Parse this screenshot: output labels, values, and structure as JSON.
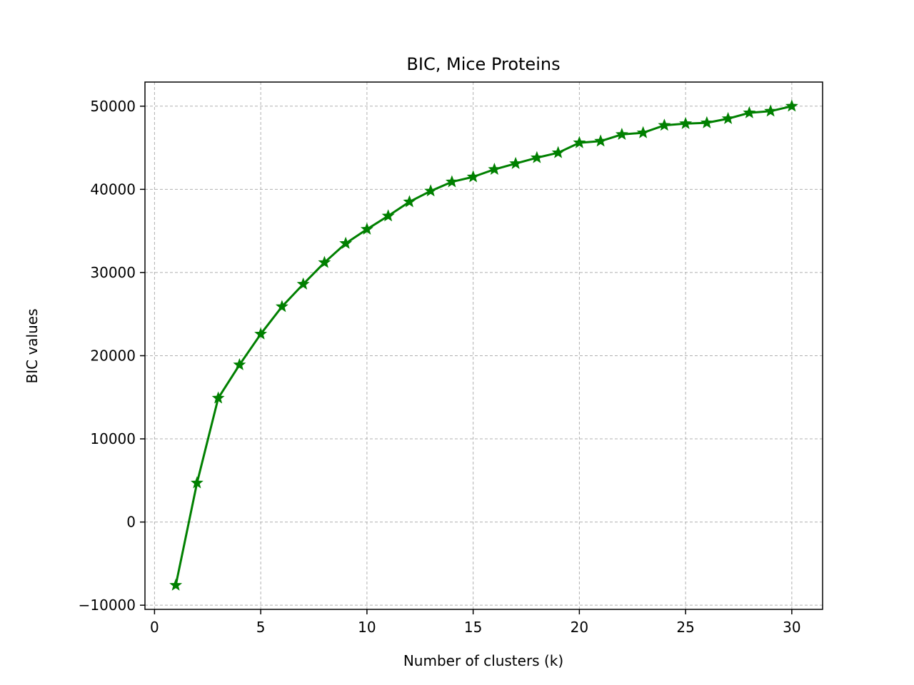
{
  "chart_data": {
    "type": "line",
    "title": "BIC, Mice Proteins",
    "xlabel": "Number of clusters (k)",
    "ylabel": "BIC values",
    "xlim": [
      -0.45,
      31.45
    ],
    "ylim": [
      -10500,
      52900
    ],
    "xticks": [
      0,
      5,
      10,
      15,
      20,
      25,
      30
    ],
    "yticks": [
      -10000,
      0,
      10000,
      20000,
      30000,
      40000,
      50000
    ],
    "xtick_labels": [
      "0",
      "5",
      "10",
      "15",
      "20",
      "25",
      "30"
    ],
    "ytick_labels": [
      "−10000",
      "0",
      "10000",
      "20000",
      "30000",
      "40000",
      "50000"
    ],
    "grid": true,
    "series": [
      {
        "color": "#008000",
        "marker": "star",
        "x": [
          1,
          2,
          3,
          4,
          5,
          6,
          7,
          8,
          9,
          10,
          11,
          12,
          13,
          14,
          15,
          16,
          17,
          18,
          19,
          20,
          21,
          22,
          23,
          24,
          25,
          26,
          27,
          28,
          29,
          30
        ],
        "values": [
          -7600,
          4700,
          14900,
          18900,
          22600,
          25900,
          28600,
          31200,
          33500,
          35200,
          36800,
          38500,
          39800,
          40900,
          41500,
          42400,
          43100,
          43800,
          44400,
          45600,
          45800,
          46600,
          46800,
          47700,
          47900,
          48000,
          48500,
          49200,
          49400,
          50000
        ]
      }
    ]
  }
}
